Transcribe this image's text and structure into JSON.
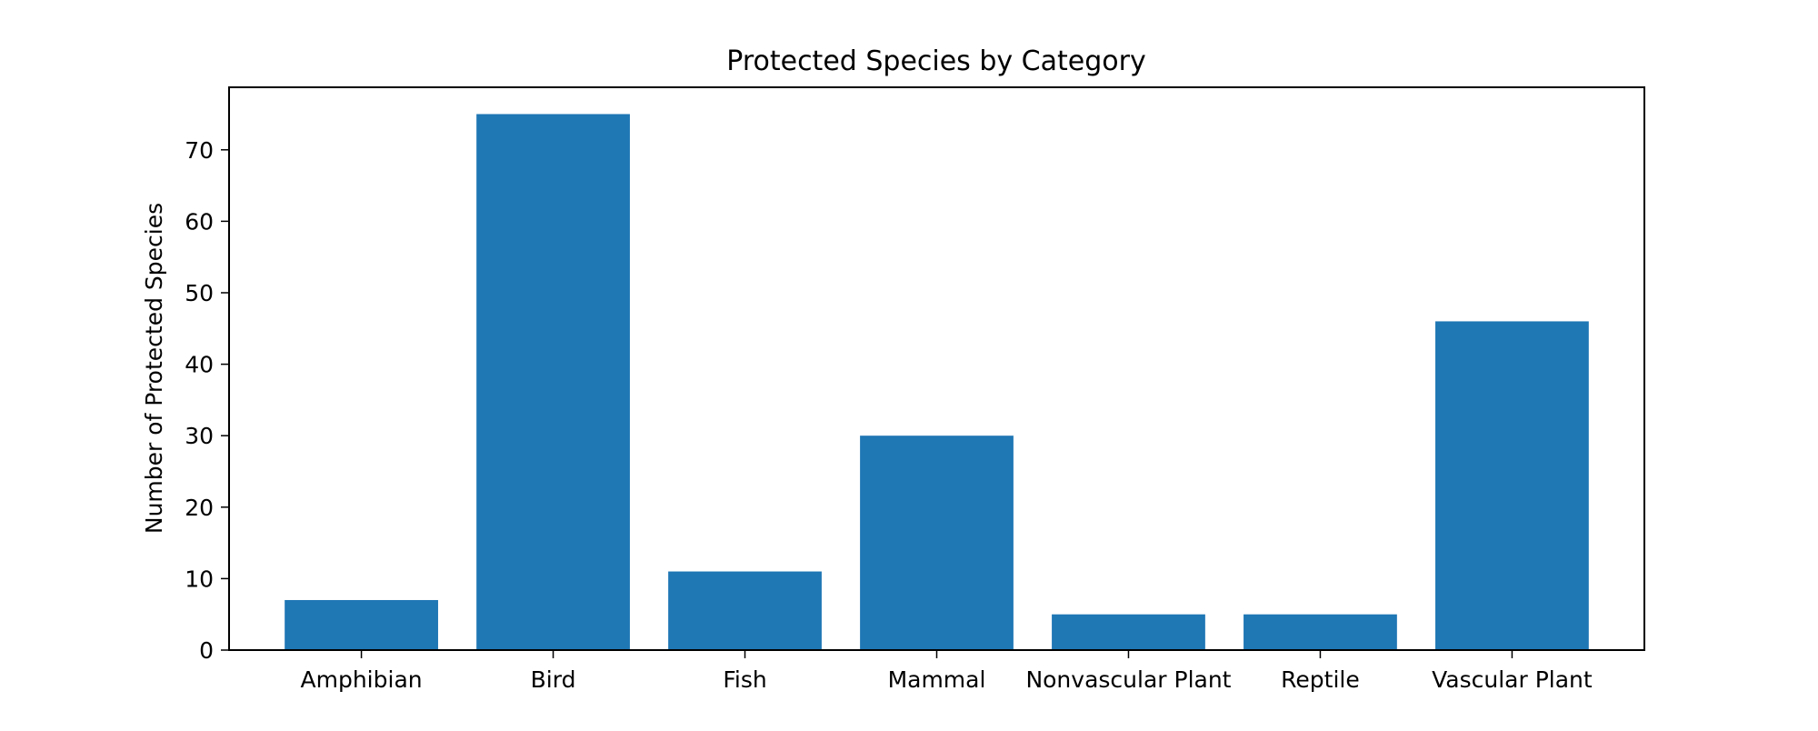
{
  "chart_data": {
    "type": "bar",
    "title": "Protected Species by Category",
    "xlabel": "",
    "ylabel": "Number of Protected Species",
    "categories": [
      "Amphibian",
      "Bird",
      "Fish",
      "Mammal",
      "Nonvascular Plant",
      "Reptile",
      "Vascular Plant"
    ],
    "values": [
      7,
      75,
      11,
      30,
      5,
      5,
      46
    ],
    "ylim": [
      0,
      78.75
    ],
    "yticks": [
      0,
      10,
      20,
      30,
      40,
      50,
      60,
      70
    ],
    "grid": false,
    "legend": "none",
    "colors": {
      "bar": "#1f77b4",
      "axes": "#000000",
      "background": "#ffffff"
    }
  }
}
